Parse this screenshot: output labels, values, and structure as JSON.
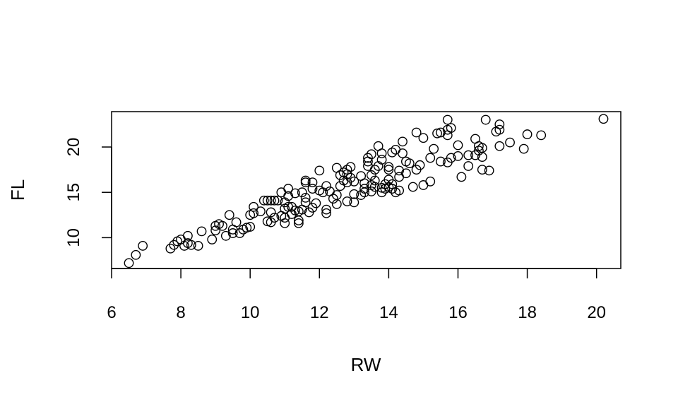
{
  "chart_data": {
    "type": "scatter",
    "title": "",
    "xlabel": "RW",
    "ylabel": "FL",
    "xlim": [
      6,
      20.7
    ],
    "ylim": [
      6.6,
      23.9
    ],
    "x_ticks": [
      6,
      8,
      10,
      12,
      14,
      16,
      18,
      20
    ],
    "y_ticks": [
      10,
      15,
      20
    ],
    "grid": false,
    "marker": "open-circle",
    "colors": {
      "points": "#000000",
      "background": "#ffffff"
    },
    "points": [
      [
        6.5,
        7.2
      ],
      [
        6.7,
        8.1
      ],
      [
        6.9,
        9.1
      ],
      [
        7.7,
        8.8
      ],
      [
        7.8,
        9.2
      ],
      [
        7.9,
        9.6
      ],
      [
        8.0,
        9.8
      ],
      [
        8.1,
        9.1
      ],
      [
        8.2,
        10.2
      ],
      [
        8.2,
        9.4
      ],
      [
        8.3,
        9.2
      ],
      [
        8.5,
        9.1
      ],
      [
        8.6,
        10.7
      ],
      [
        8.9,
        9.8
      ],
      [
        9.0,
        10.8
      ],
      [
        9.0,
        11.3
      ],
      [
        9.1,
        11.5
      ],
      [
        9.2,
        11.3
      ],
      [
        9.3,
        10.2
      ],
      [
        9.4,
        12.5
      ],
      [
        9.5,
        10.5
      ],
      [
        9.5,
        10.9
      ],
      [
        9.6,
        11.7
      ],
      [
        9.7,
        10.5
      ],
      [
        9.8,
        10.9
      ],
      [
        9.9,
        11.1
      ],
      [
        10.0,
        11.2
      ],
      [
        10.0,
        12.5
      ],
      [
        10.1,
        12.7
      ],
      [
        10.1,
        13.4
      ],
      [
        10.3,
        12.9
      ],
      [
        10.4,
        14.1
      ],
      [
        10.5,
        11.8
      ],
      [
        10.5,
        14.1
      ],
      [
        10.6,
        11.7
      ],
      [
        10.6,
        12.8
      ],
      [
        10.6,
        14.1
      ],
      [
        10.7,
        12.2
      ],
      [
        10.7,
        14.1
      ],
      [
        10.8,
        14.1
      ],
      [
        10.9,
        12.4
      ],
      [
        10.9,
        15.0
      ],
      [
        11.0,
        11.6
      ],
      [
        11.0,
        12.2
      ],
      [
        11.0,
        13.2
      ],
      [
        11.0,
        13.9
      ],
      [
        11.1,
        13.4
      ],
      [
        11.1,
        14.6
      ],
      [
        11.1,
        15.4
      ],
      [
        11.2,
        12.6
      ],
      [
        11.2,
        13.4
      ],
      [
        11.3,
        13.0
      ],
      [
        11.3,
        14.9
      ],
      [
        11.4,
        11.6
      ],
      [
        11.4,
        11.9
      ],
      [
        11.4,
        12.9
      ],
      [
        11.5,
        13.1
      ],
      [
        11.5,
        15.0
      ],
      [
        11.6,
        13.9
      ],
      [
        11.6,
        14.4
      ],
      [
        11.6,
        16.1
      ],
      [
        11.6,
        16.3
      ],
      [
        11.7,
        12.8
      ],
      [
        11.8,
        13.3
      ],
      [
        11.8,
        15.4
      ],
      [
        11.8,
        16.1
      ],
      [
        11.9,
        13.8
      ],
      [
        12.0,
        15.2
      ],
      [
        12.0,
        17.4
      ],
      [
        12.1,
        15.0
      ],
      [
        12.2,
        12.7
      ],
      [
        12.2,
        13.1
      ],
      [
        12.2,
        15.7
      ],
      [
        12.3,
        15.1
      ],
      [
        12.4,
        14.3
      ],
      [
        12.5,
        13.7
      ],
      [
        12.5,
        14.7
      ],
      [
        12.5,
        17.7
      ],
      [
        12.6,
        15.7
      ],
      [
        12.6,
        16.9
      ],
      [
        12.7,
        16.3
      ],
      [
        12.7,
        17.2
      ],
      [
        12.8,
        14.0
      ],
      [
        12.8,
        16.1
      ],
      [
        12.8,
        17.0
      ],
      [
        12.8,
        17.5
      ],
      [
        12.9,
        16.6
      ],
      [
        12.9,
        17.8
      ],
      [
        13.0,
        13.9
      ],
      [
        13.0,
        14.8
      ],
      [
        13.0,
        16.2
      ],
      [
        13.2,
        14.7
      ],
      [
        13.2,
        16.8
      ],
      [
        13.3,
        15.0
      ],
      [
        13.3,
        15.4
      ],
      [
        13.3,
        16.0
      ],
      [
        13.4,
        17.9
      ],
      [
        13.4,
        18.4
      ],
      [
        13.4,
        18.8
      ],
      [
        13.5,
        15.1
      ],
      [
        13.5,
        15.8
      ],
      [
        13.5,
        16.9
      ],
      [
        13.5,
        19.2
      ],
      [
        13.6,
        15.6
      ],
      [
        13.6,
        16.3
      ],
      [
        13.6,
        17.5
      ],
      [
        13.7,
        17.9
      ],
      [
        13.7,
        20.1
      ],
      [
        13.8,
        15.0
      ],
      [
        13.8,
        15.5
      ],
      [
        13.8,
        18.6
      ],
      [
        13.8,
        19.3
      ],
      [
        13.9,
        15.4
      ],
      [
        13.9,
        15.9
      ],
      [
        14.0,
        15.6
      ],
      [
        14.0,
        16.4
      ],
      [
        14.0,
        17.5
      ],
      [
        14.0,
        17.8
      ],
      [
        14.1,
        15.4
      ],
      [
        14.1,
        15.9
      ],
      [
        14.1,
        19.4
      ],
      [
        14.2,
        15.0
      ],
      [
        14.2,
        19.7
      ],
      [
        14.3,
        15.2
      ],
      [
        14.3,
        16.7
      ],
      [
        14.3,
        17.4
      ],
      [
        14.4,
        19.3
      ],
      [
        14.4,
        20.6
      ],
      [
        14.5,
        17.1
      ],
      [
        14.5,
        18.4
      ],
      [
        14.6,
        18.2
      ],
      [
        14.7,
        15.6
      ],
      [
        14.8,
        17.5
      ],
      [
        14.8,
        21.6
      ],
      [
        14.9,
        18.0
      ],
      [
        15.0,
        15.8
      ],
      [
        15.0,
        21.0
      ],
      [
        15.2,
        16.2
      ],
      [
        15.2,
        18.8
      ],
      [
        15.3,
        19.8
      ],
      [
        15.4,
        21.5
      ],
      [
        15.5,
        18.4
      ],
      [
        15.5,
        21.6
      ],
      [
        15.7,
        18.3
      ],
      [
        15.7,
        21.3
      ],
      [
        15.7,
        21.9
      ],
      [
        15.7,
        23.0
      ],
      [
        15.8,
        18.8
      ],
      [
        15.8,
        22.1
      ],
      [
        16.0,
        19.0
      ],
      [
        16.0,
        20.2
      ],
      [
        16.1,
        16.7
      ],
      [
        16.3,
        17.9
      ],
      [
        16.3,
        19.1
      ],
      [
        16.5,
        19.1
      ],
      [
        16.5,
        20.9
      ],
      [
        16.6,
        19.6
      ],
      [
        16.6,
        20.1
      ],
      [
        16.7,
        17.5
      ],
      [
        16.7,
        18.9
      ],
      [
        16.7,
        19.9
      ],
      [
        16.8,
        23.0
      ],
      [
        16.9,
        17.4
      ],
      [
        17.1,
        21.7
      ],
      [
        17.2,
        20.1
      ],
      [
        17.2,
        21.9
      ],
      [
        17.2,
        22.5
      ],
      [
        17.5,
        20.5
      ],
      [
        17.9,
        19.8
      ],
      [
        18.0,
        21.4
      ],
      [
        18.4,
        21.3
      ],
      [
        20.2,
        23.1
      ]
    ]
  }
}
